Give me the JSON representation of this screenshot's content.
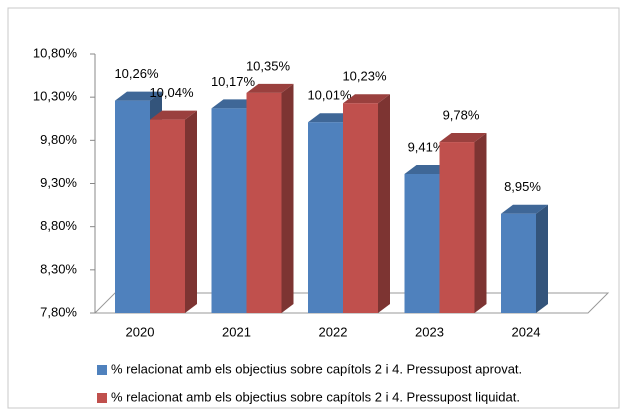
{
  "chart_data": {
    "type": "bar3d",
    "categories": [
      "2020",
      "2021",
      "2022",
      "2023",
      "2024"
    ],
    "series": [
      {
        "name": "% relacionat amb els objectius sobre capítols 2 i 4. Pressupost aprovat.",
        "color": "#4f81bd",
        "values": [
          10.26,
          10.17,
          10.01,
          9.41,
          8.95
        ],
        "value_labels": [
          "10,26%",
          "10,17%",
          "10,01%",
          "9,41%",
          "8,95%"
        ]
      },
      {
        "name": "% relacionat amb els objectius sobre capítols 2 i 4. Pressupost liquidat.",
        "color": "#c0504d",
        "values": [
          10.04,
          10.35,
          10.23,
          9.78,
          null
        ],
        "value_labels": [
          "10,04%",
          "10,35%",
          "10,23%",
          "9,78%",
          null
        ]
      }
    ],
    "ylim": [
      7.8,
      10.8
    ],
    "yticks": [
      {
        "value": 7.8,
        "label": "7,80%"
      },
      {
        "value": 8.3,
        "label": "8,30%"
      },
      {
        "value": 8.8,
        "label": "8,80%"
      },
      {
        "value": 9.3,
        "label": "9,30%"
      },
      {
        "value": 9.8,
        "label": "9,80%"
      },
      {
        "value": 10.3,
        "label": "10,30%"
      },
      {
        "value": 10.8,
        "label": "10,80%"
      }
    ],
    "grid": false,
    "legend": "bottom"
  }
}
